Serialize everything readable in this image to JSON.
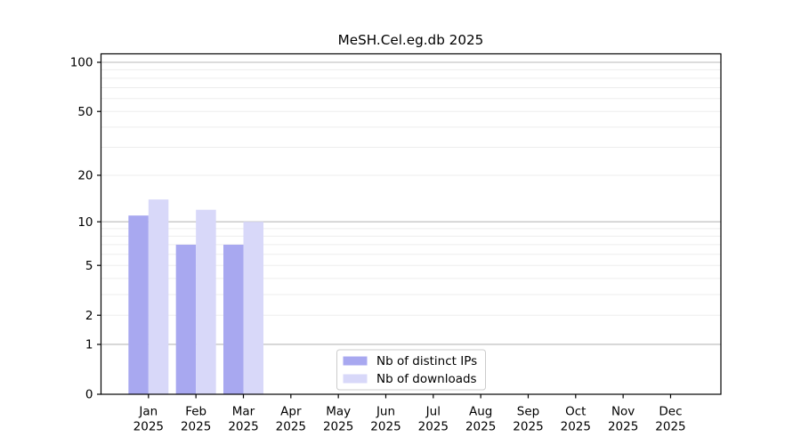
{
  "title": "MeSH.Cel.eg.db 2025",
  "chart_data": {
    "type": "bar",
    "title": "MeSH.Cel.eg.db 2025",
    "categories": [
      "Jan",
      "Feb",
      "Mar",
      "Apr",
      "May",
      "Jun",
      "Jul",
      "Aug",
      "Sep",
      "Oct",
      "Nov",
      "Dec"
    ],
    "year_label": "2025",
    "series": [
      {
        "name": "Nb of distinct IPs",
        "color": "#a8a8f0",
        "values": [
          11,
          7,
          7,
          0,
          0,
          0,
          0,
          0,
          0,
          0,
          0,
          0
        ]
      },
      {
        "name": "Nb of downloads",
        "color": "#d8d8f9",
        "values": [
          14,
          12,
          10,
          0,
          0,
          0,
          0,
          0,
          0,
          0,
          0,
          0
        ]
      }
    ],
    "yscale": "log1p",
    "ylim": [
      0,
      113
    ],
    "yticks": [
      0,
      1,
      2,
      5,
      10,
      20,
      50,
      100
    ],
    "grid_major_values": [
      1,
      10,
      100
    ],
    "grid_minor_values": [
      2,
      3,
      4,
      5,
      6,
      7,
      8,
      9,
      20,
      30,
      40,
      50,
      60,
      70,
      80,
      90
    ],
    "grid": "horizontal",
    "legend_position": "bottom-center"
  },
  "colors": {
    "background": "#ffffff",
    "axis": "#000000",
    "text": "#000000",
    "grid_minor": "#ededed",
    "grid_major": "#b8b8b8",
    "legend_border": "#cccccc",
    "legend_bg": "#ffffff"
  }
}
